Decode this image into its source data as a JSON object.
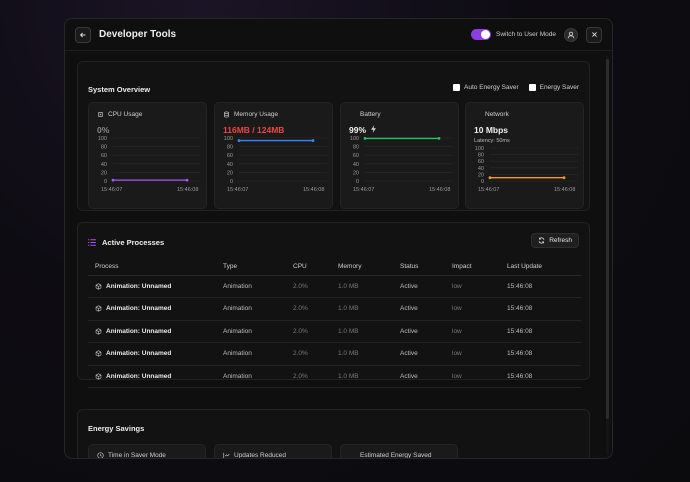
{
  "window": {
    "title": "Developer Tools",
    "toggle_label": "Switch to User Mode"
  },
  "overview": {
    "title": "System Overview",
    "options": [
      "Auto Energy Saver",
      "Energy Saver"
    ],
    "metrics": [
      {
        "name": "CPU Usage",
        "value": "0%",
        "value_color": "#8a8a8a",
        "line_color": "#a855f7",
        "sub": "",
        "level": 0.02,
        "time_start": "15:46:07",
        "time_end": "15:46:08",
        "icon": "cpu-icon"
      },
      {
        "name": "Memory Usage",
        "value": "116MB / 124MB",
        "value_color": "#ef4444",
        "line_color": "#3b82f6",
        "sub": "",
        "level": 0.94,
        "time_start": "15:46:07",
        "time_end": "15:46:08",
        "icon": "database-icon"
      },
      {
        "name": "Battery",
        "value": "99%",
        "value_color": "#f0f0f0",
        "line_color": "#22c55e",
        "sub": "",
        "level": 0.99,
        "time_start": "15:46:07",
        "time_end": "15:46:08",
        "icon": "battery-icon"
      },
      {
        "name": "Network",
        "value": "10 Mbps",
        "value_color": "#f0f0f0",
        "line_color": "#f59e0b",
        "sub": "Latency: 50ms",
        "level": 0.1,
        "time_start": "15:46:07",
        "time_end": "15:46:08",
        "icon": "network-icon"
      }
    ],
    "y_ticks": [
      "100",
      "80",
      "60",
      "40",
      "20",
      "0"
    ]
  },
  "processes": {
    "title": "Active Processes",
    "refresh_label": "Refresh",
    "columns": [
      "Process",
      "Type",
      "CPU",
      "Memory",
      "Status",
      "Impact",
      "Last Update"
    ],
    "rows": [
      [
        "Animation: Unnamed",
        "Animation",
        "2.0%",
        "1.0 MB",
        "Active",
        "low",
        "15:46:08"
      ],
      [
        "Animation: Unnamed",
        "Animation",
        "2.0%",
        "1.0 MB",
        "Active",
        "low",
        "15:46:08"
      ],
      [
        "Animation: Unnamed",
        "Animation",
        "2.0%",
        "1.0 MB",
        "Active",
        "low",
        "15:46:08"
      ],
      [
        "Animation: Unnamed",
        "Animation",
        "2.0%",
        "1.0 MB",
        "Active",
        "low",
        "15:46:08"
      ],
      [
        "Animation: Unnamed",
        "Animation",
        "2.0%",
        "1.0 MB",
        "Active",
        "low",
        "15:46:08"
      ]
    ]
  },
  "energy": {
    "title": "Energy Savings",
    "boxes": [
      {
        "label": "Time in Saver Mode",
        "icon": "clock-icon"
      },
      {
        "label": "Updates Reduced",
        "icon": "chart-icon"
      },
      {
        "label": "Estimated Energy Saved",
        "icon": ""
      }
    ]
  }
}
